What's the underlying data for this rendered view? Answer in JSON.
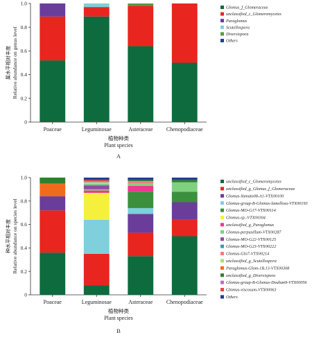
{
  "chart_data": [
    {
      "panel_label": "A",
      "type": "bar",
      "stacked": true,
      "title": "",
      "ylabel_cn": "属水平相对丰度",
      "ylabel": "Relative abundance on genus level",
      "xlabel_cn": "植物种类",
      "xlabel": "Plant species",
      "categories": [
        "Poaceae",
        "Leguminosae",
        "Asteraceae",
        "Chenopodiaceae"
      ],
      "ylim": [
        0,
        1.0
      ],
      "yticks": [
        "0",
        "0.2",
        "0.4",
        "0.6",
        "0.8",
        "1.0"
      ],
      "legend_position": "top-right",
      "series": [
        {
          "name": "Glomus_f_Glomeraceae",
          "color": "#0e6b3e",
          "values": [
            0.52,
            0.89,
            0.64,
            0.5
          ]
        },
        {
          "name": "unclassified_c_Glomeromycetes",
          "color": "#e8251f",
          "values": [
            0.37,
            0.08,
            0.34,
            0.5
          ]
        },
        {
          "name": "Paraglomus",
          "color": "#6a3d9a",
          "values": [
            0.11,
            0.0,
            0.0,
            0.0
          ]
        },
        {
          "name": "Scutellospora",
          "color": "#7fcfdc",
          "values": [
            0.0,
            0.03,
            0.0,
            0.0
          ]
        },
        {
          "name": "Diversispora",
          "color": "#5a9a3c",
          "values": [
            0.0,
            0.0,
            0.02,
            0.0
          ]
        },
        {
          "name": "Others",
          "color": "#1f3f8f",
          "values": [
            0.0,
            0.0,
            0.0,
            0.0
          ]
        }
      ]
    },
    {
      "panel_label": "B",
      "type": "bar",
      "stacked": true,
      "title": "",
      "ylabel_cn": "种水平相对丰度",
      "ylabel": "Relative abundance on species level",
      "xlabel_cn": "植物种类",
      "xlabel": "Plant species",
      "categories": [
        "Poaceae",
        "Leguminosae",
        "Asteraceae",
        "Chenopodiaceae"
      ],
      "ylim": [
        0,
        1.0
      ],
      "yticks": [
        "0",
        "0.2",
        "0.4",
        "0.6",
        "0.8",
        "1.0"
      ],
      "legend_position": "top-right",
      "series": [
        {
          "name": "unclassified_c_Glomeromycetes",
          "color": "#0e6b3e",
          "values": [
            0.36,
            0.08,
            0.33,
            0.5
          ]
        },
        {
          "name": "unclassified_g_Glomus_f_Glomeraceae",
          "color": "#e8251f",
          "values": [
            0.36,
            0.27,
            0.2,
            0.14
          ]
        },
        {
          "name": "Glomus-Yamato08-A1-VTX00100",
          "color": "#6a3d9a",
          "values": [
            0.12,
            0.0,
            0.16,
            0.15
          ]
        },
        {
          "name": "Glomus-group-B-Glomus-lamellosu-VTX00193",
          "color": "#7fcfdc",
          "values": [
            0.0,
            0.29,
            0.05,
            0.0
          ]
        },
        {
          "name": "Glomus-MO-G17-VTX00114",
          "color": "#3c8f3c",
          "values": [
            0.0,
            0.0,
            0.14,
            0.09
          ]
        },
        {
          "name": "Glomus-sp.-VTX00304",
          "color": "#f5f03c",
          "values": [
            0.0,
            0.23,
            0.0,
            0.0
          ]
        },
        {
          "name": "unclassified_g_Paraglomus",
          "color": "#ec3a8c",
          "values": [
            0.0,
            0.02,
            0.05,
            0.0
          ]
        },
        {
          "name": "Glomus-perpusillum-VTX00287",
          "color": "#7fd17f",
          "values": [
            0.0,
            0.01,
            0.02,
            0.08
          ]
        },
        {
          "name": "Glomus-MO-G22-VTX00125",
          "color": "#8f4ba3",
          "values": [
            0.0,
            0.03,
            0.0,
            0.0
          ]
        },
        {
          "name": "Glomus-MO-G23-VTX00222",
          "color": "#3a9bb5",
          "values": [
            0.0,
            0.01,
            0.0,
            0.0
          ]
        },
        {
          "name": "Glomus-Glo7-VTX00214",
          "color": "#f08080",
          "values": [
            0.0,
            0.0,
            0.02,
            0.0
          ]
        },
        {
          "name": "unclassified_g_Scutellospora",
          "color": "#a8e07a",
          "values": [
            0.0,
            0.02,
            0.0,
            0.0
          ]
        },
        {
          "name": "Paraglomus-Glom-1B.13-VTX00308",
          "color": "#f26b1d",
          "values": [
            0.11,
            0.0,
            0.0,
            0.0
          ]
        },
        {
          "name": "unclassified_g_Diversispora",
          "color": "#2f7f2f",
          "values": [
            0.05,
            0.0,
            0.01,
            0.02
          ]
        },
        {
          "name": "Glomus-group-B-Glomus-Douhan9-VTX00056",
          "color": "#c06ec0",
          "values": [
            0.0,
            0.01,
            0.0,
            0.0
          ]
        },
        {
          "name": "Glomus-viscosum-VTX00063",
          "color": "#e84545",
          "values": [
            0.0,
            0.01,
            0.0,
            0.0
          ]
        },
        {
          "name": "Others",
          "color": "#1f3f8f",
          "values": [
            0.0,
            0.02,
            0.02,
            0.02
          ]
        }
      ]
    }
  ]
}
